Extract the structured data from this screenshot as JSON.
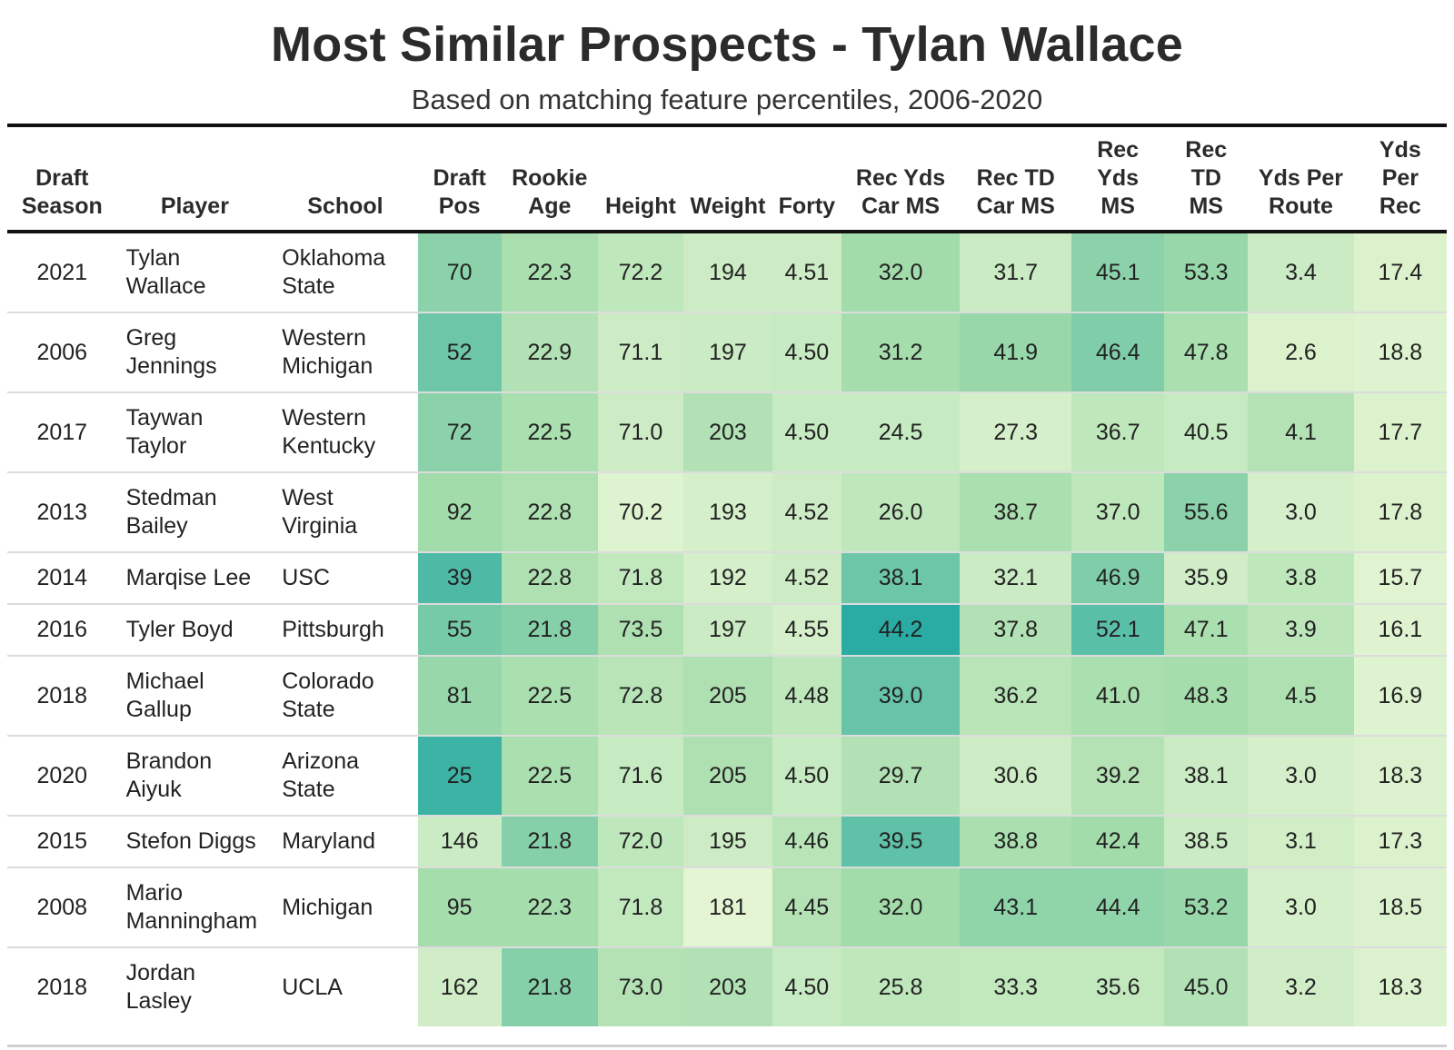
{
  "chart_data": {
    "type": "table",
    "title": "Most Similar Prospects - Tylan Wallace",
    "subtitle": "Based on matching feature percentiles, 2006-2020",
    "columns": [
      {
        "key": "season",
        "label": "Draft Season",
        "lines": [
          "Draft",
          "Season"
        ]
      },
      {
        "key": "player",
        "label": "Player",
        "lines": [
          "Player"
        ]
      },
      {
        "key": "school",
        "label": "School",
        "lines": [
          "School"
        ]
      },
      {
        "key": "draft_pos",
        "label": "Draft Pos",
        "lines": [
          "Draft",
          "Pos"
        ]
      },
      {
        "key": "rookie_age",
        "label": "Rookie Age",
        "lines": [
          "Rookie",
          "Age"
        ]
      },
      {
        "key": "height",
        "label": "Height",
        "lines": [
          "Height"
        ]
      },
      {
        "key": "weight",
        "label": "Weight",
        "lines": [
          "Weight"
        ]
      },
      {
        "key": "forty",
        "label": "Forty",
        "lines": [
          "Forty"
        ]
      },
      {
        "key": "rec_yds_car_ms",
        "label": "Rec Yds Car MS",
        "lines": [
          "Rec Yds",
          "Car MS"
        ]
      },
      {
        "key": "rec_td_car_ms",
        "label": "Rec TD Car MS",
        "lines": [
          "Rec TD",
          "Car MS"
        ]
      },
      {
        "key": "rec_yds_ms",
        "label": "Rec Yds MS",
        "lines": [
          "Rec",
          "Yds",
          "MS"
        ]
      },
      {
        "key": "rec_td_ms",
        "label": "Rec TD MS",
        "lines": [
          "Rec",
          "TD",
          "MS"
        ]
      },
      {
        "key": "yds_per_route",
        "label": "Yds Per Route",
        "lines": [
          "Yds Per",
          "Route"
        ]
      },
      {
        "key": "yds_per_rec",
        "label": "Yds Per Rec",
        "lines": [
          "Yds",
          "Per",
          "Rec"
        ]
      }
    ],
    "rows": [
      {
        "season": "2021",
        "player": [
          "Tylan",
          "Wallace"
        ],
        "school": [
          "Oklahoma",
          "State"
        ],
        "values": [
          "70",
          "22.3",
          "72.2",
          "194",
          "4.51",
          "32.0",
          "31.7",
          "45.1",
          "53.3",
          "3.4",
          "17.4"
        ],
        "shade": [
          0.6,
          0.45,
          0.3,
          0.2,
          0.2,
          0.5,
          0.22,
          0.6,
          0.55,
          0.22,
          0.1
        ]
      },
      {
        "season": "2006",
        "player": [
          "Greg",
          "Jennings"
        ],
        "school": [
          "Western",
          "Michigan"
        ],
        "values": [
          "52",
          "22.9",
          "71.1",
          "197",
          "4.50",
          "31.2",
          "41.9",
          "46.4",
          "47.8",
          "2.6",
          "18.8"
        ],
        "shade": [
          0.72,
          0.4,
          0.2,
          0.22,
          0.25,
          0.48,
          0.55,
          0.65,
          0.45,
          0.1,
          0.08
        ]
      },
      {
        "season": "2017",
        "player": [
          "Taywan",
          "Taylor"
        ],
        "school": [
          "Western",
          "Kentucky"
        ],
        "values": [
          "72",
          "22.5",
          "71.0",
          "203",
          "4.50",
          "24.5",
          "27.3",
          "36.7",
          "40.5",
          "4.1",
          "17.7"
        ],
        "shade": [
          0.6,
          0.45,
          0.2,
          0.4,
          0.25,
          0.25,
          0.15,
          0.3,
          0.25,
          0.38,
          0.1
        ]
      },
      {
        "season": "2013",
        "player": [
          "Stedman",
          "Bailey"
        ],
        "school": [
          "West",
          "Virginia"
        ],
        "values": [
          "92",
          "22.8",
          "70.2",
          "193",
          "4.52",
          "26.0",
          "38.7",
          "37.0",
          "55.6",
          "3.0",
          "17.8"
        ],
        "shade": [
          0.5,
          0.42,
          0.08,
          0.15,
          0.2,
          0.3,
          0.45,
          0.3,
          0.6,
          0.15,
          0.1
        ]
      },
      {
        "season": "2014",
        "player": [
          "Marqise Lee"
        ],
        "school": [
          "USC"
        ],
        "values": [
          "39",
          "22.8",
          "71.8",
          "192",
          "4.52",
          "38.1",
          "32.1",
          "46.9",
          "35.9",
          "3.8",
          "15.7"
        ],
        "shade": [
          0.85,
          0.42,
          0.28,
          0.15,
          0.2,
          0.72,
          0.22,
          0.65,
          0.18,
          0.3,
          0.06
        ]
      },
      {
        "season": "2016",
        "player": [
          "Tyler Boyd"
        ],
        "school": [
          "Pittsburgh"
        ],
        "values": [
          "55",
          "21.8",
          "73.5",
          "197",
          "4.55",
          "44.2",
          "37.8",
          "52.1",
          "47.1",
          "3.9",
          "16.1"
        ],
        "shade": [
          0.68,
          0.62,
          0.42,
          0.22,
          0.15,
          1.0,
          0.4,
          0.8,
          0.45,
          0.32,
          0.07
        ]
      },
      {
        "season": "2018",
        "player": [
          "Michael",
          "Gallup"
        ],
        "school": [
          "Colorado",
          "State"
        ],
        "values": [
          "81",
          "22.5",
          "72.8",
          "205",
          "4.48",
          "39.0",
          "36.2",
          "41.0",
          "48.3",
          "4.5",
          "16.9"
        ],
        "shade": [
          0.55,
          0.45,
          0.35,
          0.42,
          0.3,
          0.75,
          0.35,
          0.45,
          0.48,
          0.42,
          0.08
        ]
      },
      {
        "season": "2020",
        "player": [
          "Brandon",
          "Aiyuk"
        ],
        "school": [
          "Arizona",
          "State"
        ],
        "values": [
          "25",
          "22.5",
          "71.6",
          "205",
          "4.50",
          "29.7",
          "30.6",
          "39.2",
          "38.1",
          "3.0",
          "18.3"
        ],
        "shade": [
          0.92,
          0.45,
          0.25,
          0.42,
          0.25,
          0.4,
          0.2,
          0.38,
          0.22,
          0.15,
          0.09
        ]
      },
      {
        "season": "2015",
        "player": [
          "Stefon Diggs"
        ],
        "school": [
          "Maryland"
        ],
        "values": [
          "146",
          "21.8",
          "72.0",
          "195",
          "4.46",
          "39.5",
          "38.8",
          "42.4",
          "38.5",
          "3.1",
          "17.3"
        ],
        "shade": [
          0.22,
          0.62,
          0.3,
          0.2,
          0.35,
          0.78,
          0.45,
          0.5,
          0.22,
          0.17,
          0.1
        ]
      },
      {
        "season": "2008",
        "player": [
          "Mario",
          "Manningham"
        ],
        "school": [
          "Michigan"
        ],
        "values": [
          "95",
          "22.3",
          "71.8",
          "181",
          "4.45",
          "32.0",
          "43.1",
          "44.4",
          "53.2",
          "3.0",
          "18.5"
        ],
        "shade": [
          0.48,
          0.48,
          0.28,
          0.04,
          0.38,
          0.5,
          0.58,
          0.58,
          0.55,
          0.15,
          0.09
        ]
      },
      {
        "season": "2018",
        "player": [
          "Jordan",
          "Lasley"
        ],
        "school": [
          "UCLA"
        ],
        "values": [
          "162",
          "21.8",
          "73.0",
          "203",
          "4.50",
          "25.8",
          "33.3",
          "35.6",
          "45.0",
          "3.2",
          "18.3"
        ],
        "shade": [
          0.18,
          0.62,
          0.38,
          0.4,
          0.25,
          0.3,
          0.28,
          0.28,
          0.4,
          0.18,
          0.09
        ]
      }
    ],
    "color_scale": {
      "low": "#e9f7d6",
      "mid": "#a3dcab",
      "high": "#2aaba4"
    }
  }
}
